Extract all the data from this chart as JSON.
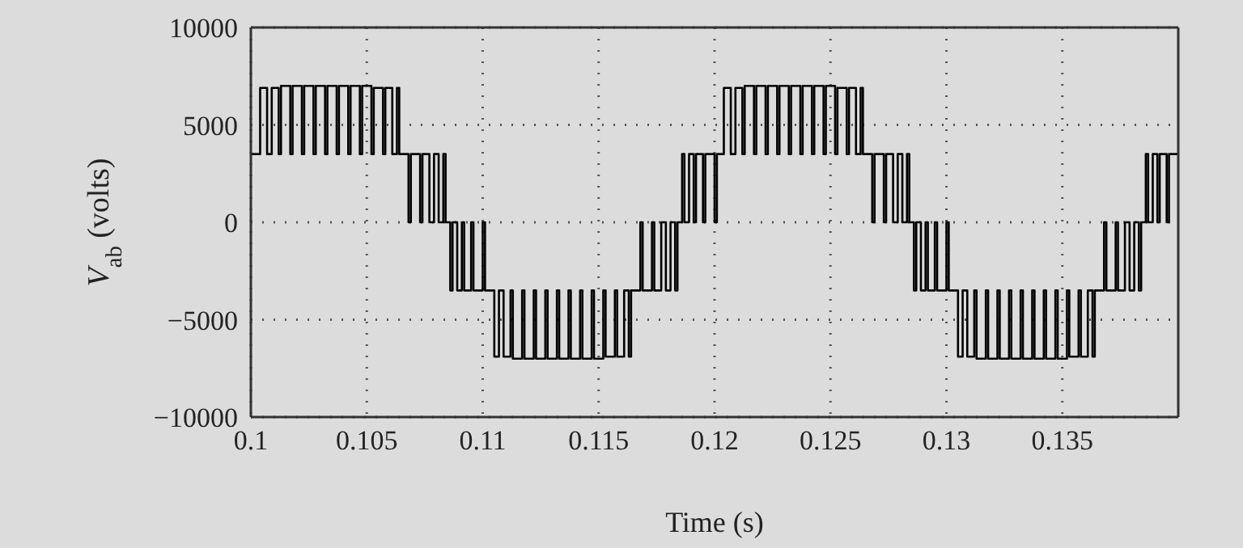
{
  "chart_data": {
    "type": "step",
    "xlabel": "Time (s)",
    "ylabel": "V$_{ab}$ (volts)",
    "xlim": [
      0.1,
      0.14
    ],
    "xticks": [
      0.1,
      0.105,
      0.11,
      0.115,
      0.12,
      0.125,
      0.13,
      0.135
    ],
    "ylim": [
      -10000,
      10000
    ],
    "yticks": [
      -10000,
      -5000,
      0,
      5000,
      10000
    ],
    "grid": true,
    "legend": false,
    "marker": "none",
    "line_style": "solid",
    "series": [
      {
        "color": "#000000",
        "x": [
          0.1,
          0.1001,
          0.1004,
          0.1007,
          0.1009,
          0.1012,
          0.1013,
          0.1017,
          0.1018,
          0.1022,
          0.1023,
          0.1027,
          0.1028,
          0.1032,
          0.1033,
          0.1037,
          0.1038,
          0.1042,
          0.1043,
          0.1047,
          0.1048,
          0.1052,
          0.1053,
          0.1057,
          0.1058,
          0.1061,
          0.1063,
          0.1064,
          0.1068,
          0.1069,
          0.1073,
          0.1074,
          0.1077,
          0.1079,
          0.1081,
          0.1083,
          0.1084,
          0.1086,
          0.1087,
          0.1089,
          0.1091,
          0.1092,
          0.1095,
          0.1096,
          0.11,
          0.1101,
          0.1105,
          0.1107,
          0.1109,
          0.1112,
          0.1113,
          0.1117,
          0.1118,
          0.1122,
          0.1123,
          0.1127,
          0.1128,
          0.1132,
          0.1133,
          0.1137,
          0.1138,
          0.1142,
          0.1143,
          0.1147,
          0.1148,
          0.1152,
          0.1153,
          0.1157,
          0.1158,
          0.1161,
          0.1163,
          0.1164,
          0.1168,
          0.1169,
          0.1173,
          0.1174,
          0.1177,
          0.1179,
          0.1181,
          0.1183,
          0.1184,
          0.1186,
          0.1187,
          0.1189,
          0.1191,
          0.1192,
          0.1195,
          0.1196,
          0.12,
          0.1201,
          0.1204,
          0.1207,
          0.1209,
          0.1212,
          0.1213,
          0.1217,
          0.1218,
          0.1222,
          0.1223,
          0.1227,
          0.1228,
          0.1232,
          0.1233,
          0.1237,
          0.1238,
          0.1242,
          0.1243,
          0.1247,
          0.1248,
          0.1252,
          0.1253,
          0.1257,
          0.1258,
          0.1261,
          0.1263,
          0.1264,
          0.1268,
          0.1269,
          0.1273,
          0.1274,
          0.1277,
          0.1279,
          0.1281,
          0.1283,
          0.1284,
          0.1286,
          0.1287,
          0.1289,
          0.1291,
          0.1292,
          0.1295,
          0.1296,
          0.13,
          0.1301,
          0.1305,
          0.1307,
          0.1309,
          0.1312,
          0.1313,
          0.1317,
          0.1318,
          0.1322,
          0.1323,
          0.1327,
          0.1328,
          0.1332,
          0.1333,
          0.1337,
          0.1338,
          0.1342,
          0.1343,
          0.1347,
          0.1348,
          0.1352,
          0.1353,
          0.1357,
          0.1358,
          0.1361,
          0.1363,
          0.1364,
          0.1368,
          0.1369,
          0.1373,
          0.1374,
          0.1377,
          0.1379,
          0.1381,
          0.1383,
          0.1384,
          0.1386,
          0.1387,
          0.1389,
          0.1391,
          0.1392,
          0.1395,
          0.1396,
          0.14
        ],
        "values": [
          3500,
          3500,
          6900,
          3500,
          6900,
          3500,
          7000,
          3500,
          7000,
          3500,
          7000,
          3500,
          7000,
          3500,
          7000,
          3500,
          7000,
          3500,
          7000,
          3500,
          7000,
          3500,
          6900,
          3500,
          6900,
          3500,
          6900,
          3500,
          0,
          3500,
          0,
          3500,
          0,
          3500,
          0,
          3500,
          0,
          -3500,
          0,
          -3500,
          0,
          -3500,
          0,
          -3500,
          0,
          -3500,
          -6900,
          -3500,
          -6900,
          -3500,
          -7000,
          -3500,
          -7000,
          -3500,
          -7000,
          -3500,
          -7000,
          -3500,
          -7000,
          -3500,
          -7000,
          -3500,
          -7000,
          -3500,
          -7000,
          -3500,
          -6900,
          -3500,
          -6900,
          -3500,
          -6900,
          -3500,
          0,
          -3500,
          0,
          -3500,
          0,
          -3500,
          0,
          -3500,
          0,
          3500,
          0,
          3500,
          0,
          3500,
          0,
          3500,
          0,
          3500,
          6900,
          3500,
          6900,
          3500,
          7000,
          3500,
          7000,
          3500,
          7000,
          3500,
          7000,
          3500,
          7000,
          3500,
          7000,
          3500,
          7000,
          3500,
          7000,
          3500,
          6900,
          3500,
          6900,
          3500,
          6900,
          3500,
          0,
          3500,
          0,
          3500,
          0,
          3500,
          0,
          3500,
          0,
          -3500,
          0,
          -3500,
          0,
          -3500,
          0,
          -3500,
          0,
          -3500,
          -6900,
          -3500,
          -6900,
          -3500,
          -7000,
          -3500,
          -7000,
          -3500,
          -7000,
          -3500,
          -7000,
          -3500,
          -7000,
          -3500,
          -7000,
          -3500,
          -7000,
          -3500,
          -7000,
          -3500,
          -6900,
          -3500,
          -6900,
          -3500,
          -6900,
          -3500,
          0,
          -3500,
          0,
          -3500,
          0,
          -3500,
          0,
          -3500,
          0,
          3500,
          0,
          3500,
          0,
          3500,
          0,
          3500,
          3500
        ]
      }
    ]
  }
}
